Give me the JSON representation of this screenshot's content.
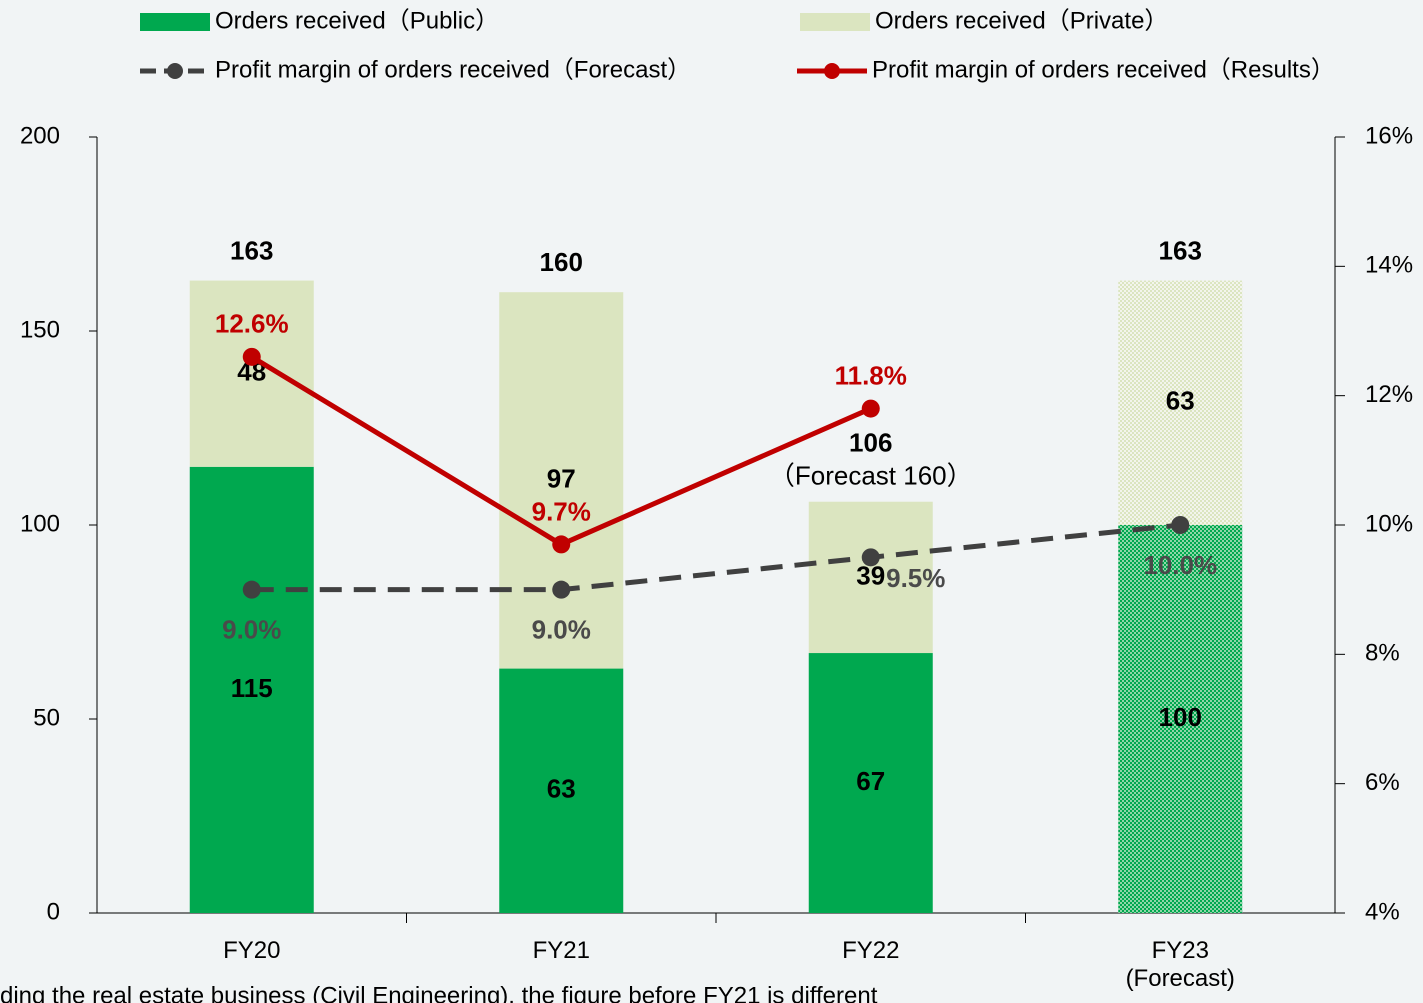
{
  "chart_data": {
    "type": "bar",
    "categories": [
      "FY20",
      "FY21",
      "FY22",
      "FY23\n(Forecast)"
    ],
    "series": [
      {
        "name": "Orders received（Public）",
        "color": "#00a84f",
        "values": [
          115,
          63,
          67,
          100
        ]
      },
      {
        "name": "Orders received（Private）",
        "color": "#dbe5c0",
        "values": [
          48,
          97,
          39,
          63
        ]
      },
      {
        "name": "Profit margin of orders received（Forecast）",
        "type": "line",
        "axis": "y2",
        "dashed": true,
        "color": "#404040",
        "values": [
          9.0,
          9.0,
          9.5,
          10.0
        ],
        "value_labels": [
          "9.0%",
          "9.0%",
          "9.5%",
          "10.0%"
        ]
      },
      {
        "name": "Profit margin of orders received（Results）",
        "type": "line",
        "axis": "y2",
        "dashed": false,
        "color": "#c00000",
        "values": [
          12.6,
          9.7,
          11.8,
          null
        ],
        "value_labels": [
          "12.6%",
          "9.7%",
          "11.8%",
          null
        ]
      }
    ],
    "totals": [
      163,
      160,
      106,
      163
    ],
    "total_notes": [
      null,
      null,
      "（Forecast 160）",
      null
    ],
    "hatched": [
      false,
      false,
      false,
      true
    ],
    "ylim": [
      0,
      200
    ],
    "yticks": [
      0,
      50,
      100,
      150,
      200
    ],
    "y2lim": [
      4,
      16
    ],
    "y2ticks": [
      {
        "value": 4,
        "label": "4%"
      },
      {
        "value": 6,
        "label": "6%"
      },
      {
        "value": 8,
        "label": "8%"
      },
      {
        "value": 10,
        "label": "10%"
      },
      {
        "value": 12,
        "label": "12%"
      },
      {
        "value": 14,
        "label": "14%"
      },
      {
        "value": 16,
        "label": "16%"
      }
    ],
    "grid": false,
    "footnote": "ding the real estate business (Civil Engineering), the figure before FY21 is different"
  }
}
